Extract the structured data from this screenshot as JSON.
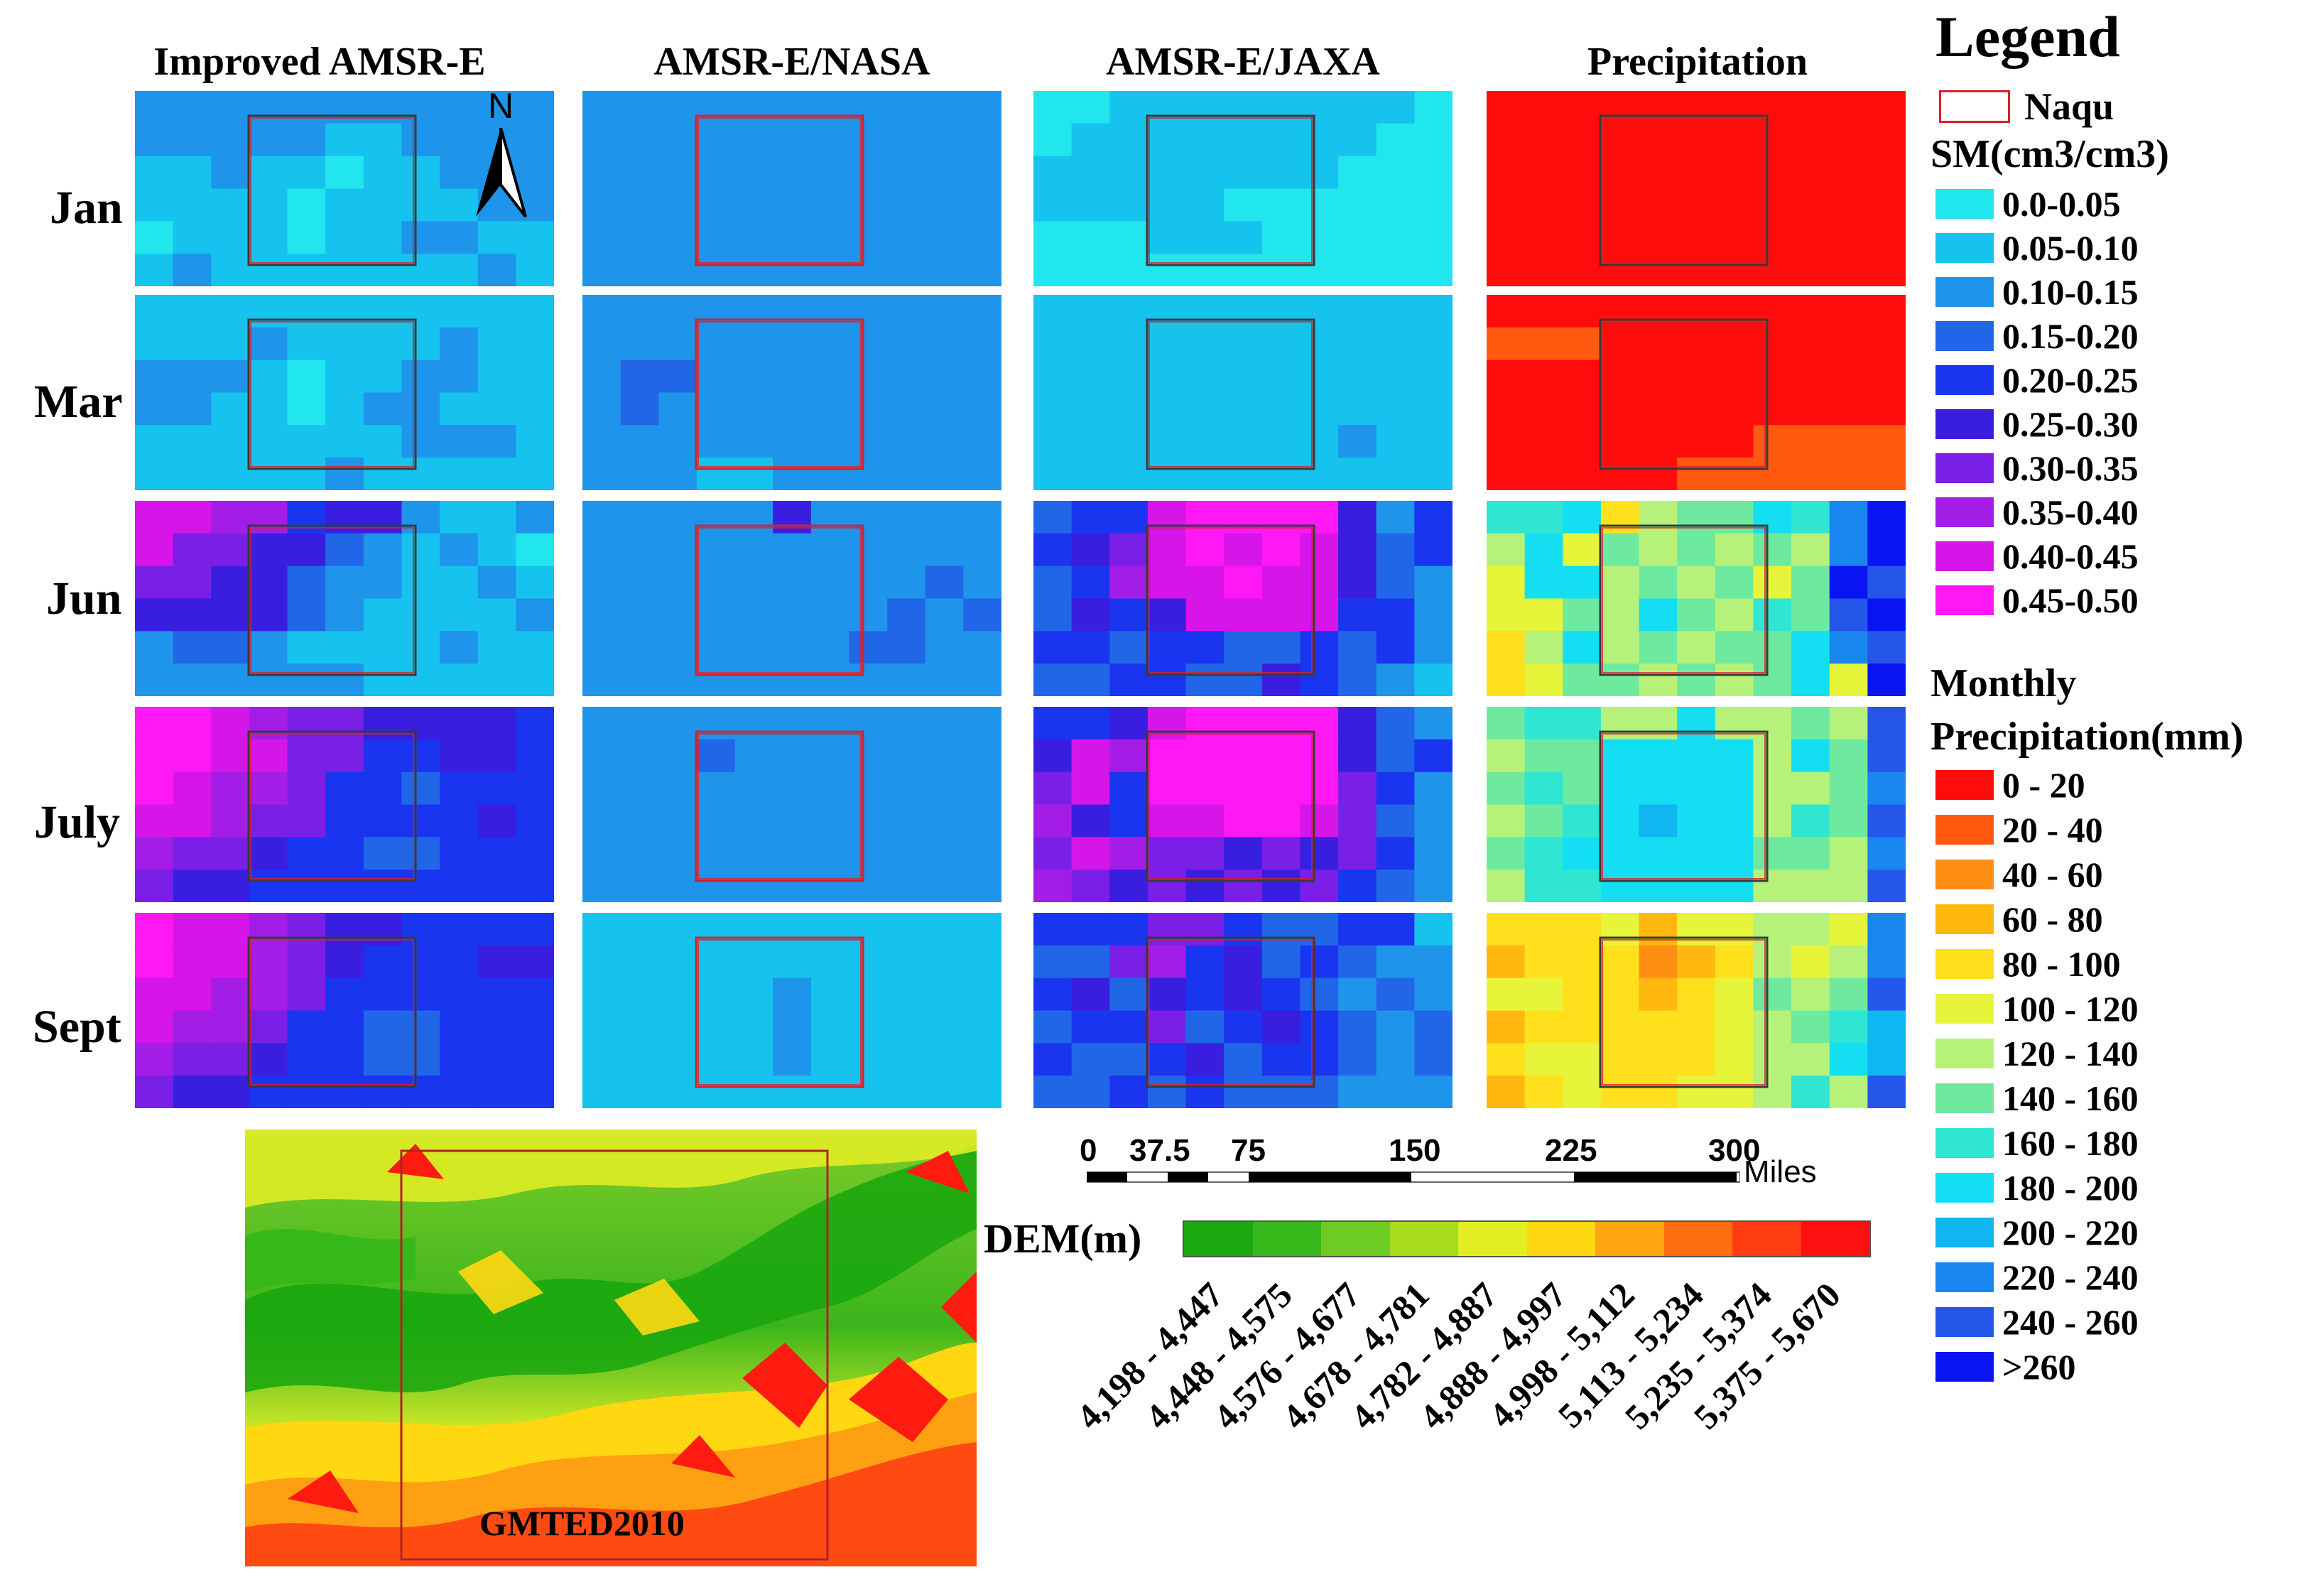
{
  "columns": [
    "Improved AMSR-E",
    "AMSR-E/NASA",
    "AMSR-E/JAXA",
    "Precipitation"
  ],
  "rows": [
    "Jan",
    "Mar",
    "Jun",
    "July",
    "Sept"
  ],
  "north_arrow_label": "N",
  "legend": {
    "title": "Legend",
    "naqu_label": "Naqu",
    "sm_title": "SM(cm3/cm3)",
    "sm_classes": [
      {
        "label": "0.0-0.05",
        "color": "#22e6ee"
      },
      {
        "label": "0.05-0.10",
        "color": "#16c2ee"
      },
      {
        "label": "0.10-0.15",
        "color": "#1e94ea"
      },
      {
        "label": "0.15-0.20",
        "color": "#2266e8"
      },
      {
        "label": "0.20-0.25",
        "color": "#1a35f0"
      },
      {
        "label": "0.25-0.30",
        "color": "#3a1ee0"
      },
      {
        "label": "0.30-0.35",
        "color": "#7a1fe6"
      },
      {
        "label": "0.35-0.40",
        "color": "#a41de6"
      },
      {
        "label": "0.40-0.45",
        "color": "#d616e8"
      },
      {
        "label": "0.45-0.50",
        "color": "#ff17f4"
      }
    ],
    "precip_title_1": "Monthly",
    "precip_title_2": "Precipitation(mm)",
    "precip_classes": [
      {
        "label": "0 - 20",
        "color": "#ff0d0d"
      },
      {
        "label": "20 - 40",
        "color": "#ff5a10"
      },
      {
        "label": "40 - 60",
        "color": "#ff8f12"
      },
      {
        "label": "60 - 80",
        "color": "#ffb810"
      },
      {
        "label": "80 - 100",
        "color": "#ffe01c"
      },
      {
        "label": "100 - 120",
        "color": "#e6f43a"
      },
      {
        "label": "120 - 140",
        "color": "#b6f27a"
      },
      {
        "label": "140 - 160",
        "color": "#6eeaa0"
      },
      {
        "label": "160 - 180",
        "color": "#2ee6d2"
      },
      {
        "label": "180 - 200",
        "color": "#14dff2"
      },
      {
        "label": "200 - 220",
        "color": "#10b6f0"
      },
      {
        "label": "220 - 240",
        "color": "#1886ee"
      },
      {
        "label": "240 - 260",
        "color": "#2556ea"
      },
      {
        "label": ">260",
        "color": "#0a14f0"
      }
    ]
  },
  "scale_bar": {
    "ticks": [
      "0",
      "37.5",
      "75",
      "150",
      "225",
      "300"
    ],
    "unit": "Miles"
  },
  "dem": {
    "title": "DEM(m)",
    "image_label": "GMTED2010",
    "classes": [
      {
        "label": "4,198 - 4,447",
        "color": "#19a80f"
      },
      {
        "label": "4,448 - 4,575",
        "color": "#37b81a"
      },
      {
        "label": "4,576 - 4,677",
        "color": "#6ecb24"
      },
      {
        "label": "4,678 - 4,781",
        "color": "#a6dc1c"
      },
      {
        "label": "4,782 - 4,887",
        "color": "#e2ee22"
      },
      {
        "label": "4,888 - 4,997",
        "color": "#ffd812"
      },
      {
        "label": "4,998 - 5,112",
        "color": "#ffa510"
      },
      {
        "label": "5,113 - 5,234",
        "color": "#ff6e10"
      },
      {
        "label": "5,235 - 5,374",
        "color": "#ff3c12"
      },
      {
        "label": "5,375 - 5,670",
        "color": "#ff1010"
      }
    ]
  },
  "panels": [
    {
      "row": 0,
      "col": 0,
      "grid": [
        "CCCCCCCCCCC",
        "CCCCCBBCCCC",
        "BBCBBABBCCC",
        "BBBBABBBBCC",
        "ABBBABBCCBB",
        "BCBBBBBBBCB"
      ]
    },
    {
      "row": 0,
      "col": 1,
      "grid": [
        "CCCCCCCCCCC",
        "CCCCCCCCCCC",
        "CCCCCCCCCCC",
        "CCCCCCCCCCC",
        "CCCCCCCCCCC",
        "CCCCCCCCCCC"
      ]
    },
    {
      "row": 0,
      "col": 2,
      "grid": [
        "AABBBBBBBBA",
        "ABBBBBBBBAA",
        "BBBBBBBBAAA",
        "BBBBBAAAAAA",
        "AAABBBAAAAA",
        "AAAAAAAAAAA"
      ]
    },
    {
      "row": 0,
      "col": 3,
      "precip": true,
      "grid": [
        "00000000000",
        "00000000000",
        "00000000000",
        "00000000000",
        "00000000000",
        "00000000000"
      ]
    },
    {
      "row": 1,
      "col": 0,
      "grid": [
        "BBBBBBBBBBB",
        "BBBCBBBBCBB",
        "CCCBABBCCBB",
        "CCBBABCCBBB",
        "BBBBBBBCCCB",
        "BBBBBCBBBBB"
      ]
    },
    {
      "row": 1,
      "col": 1,
      "grid": [
        "CCCCCCCCCCC",
        "CCCCCCCCCCC",
        "CDDCCCCCCCC",
        "CDCCCCCCCCC",
        "CCCCCCCCCCC",
        "CCCBBCCCCCC"
      ]
    },
    {
      "row": 1,
      "col": 2,
      "grid": [
        "BBBBBBBBBBB",
        "BBBBBBBBBBB",
        "BBBBBBBBBBB",
        "BBBBBBBBBBB",
        "BBBBBBBBCBB",
        "BBBBBBBBBBB"
      ]
    },
    {
      "row": 1,
      "col": 3,
      "precip": true,
      "grid": [
        "00000000000",
        "11100000000",
        "00000000000",
        "00000000000",
        "00000001111",
        "00000111111"
      ]
    },
    {
      "row": 2,
      "col": 0,
      "grid": [
        "IIHHEFFCBBC",
        "IGGFFDCBCBA",
        "GGFFDCCBBCB",
        "FFFFDCBBBBC",
        "CDDCBBBBCBB",
        "CCCCCCBBBBB"
      ]
    },
    {
      "row": 2,
      "col": 1,
      "grid": [
        "CCCCCFCCCCC",
        "CCCCCCCCCCC",
        "CCCCCCCCCDC",
        "CCCCCCCCDCD",
        "CCCCCCCDDCC",
        "CCCCCCCCCCC"
      ]
    },
    {
      "row": 2,
      "col": 2,
      "grid": [
        "DEEIJJJJFCE",
        "EFGIJIJIFDE",
        "DEHIIJIIFDC",
        "DFEFIIIIEEC",
        "EEDEEDDEDEC",
        "DDEEDDFEDCB"
      ]
    },
    {
      "row": 2,
      "col": 3,
      "precip": true,
      "grid": [
        "889467798BD",
        "695767676BD",
        "599676757DC",
        "557697687CD",
        "469676779BC",
        "4577676795D"
      ]
    },
    {
      "row": 3,
      "col": 0,
      "grid": [
        "JJIHGGFFFFE",
        "JJIIGGEEFFE",
        "JIHHGEEDEEE",
        "IIHGGEEEEFE",
        "HGGFEEDDEEE",
        "GFFEEEEEEEE"
      ]
    },
    {
      "row": 3,
      "col": 1,
      "grid": [
        "CCCCCCCCCCC",
        "CCCDCCCCCCC",
        "CCCCCCCCCCC",
        "CCCCCCCCCCC",
        "CCCCCCCCCCC",
        "CCCCCCCCCCC"
      ]
    },
    {
      "row": 3,
      "col": 2,
      "grid": [
        "EEFIJJJJFDC",
        "FIHJJJJJFDE",
        "GIEJJJJJGEC",
        "HFEIIJJIGDC",
        "GIHGGFGFGEC",
        "HGFGFGFGEDC"
      ]
    },
    {
      "row": 3,
      "col": 3,
      "precip": true,
      "grid": [
        "7886696676C",
        "6779999697C",
        "7879999667B",
        "6789A99687C",
        "7899999776B",
        "6889999666C"
      ]
    },
    {
      "row": 4,
      "col": 0,
      "grid": [
        "JIIHGFFEEEE",
        "JIIHGFEEEFF",
        "IIHHGEEEEEE",
        "IHHGEEDDEEE",
        "HGGFEEDDEEE",
        "GFFEEEEEEEE"
      ]
    },
    {
      "row": 4,
      "col": 1,
      "grid": [
        "BBBBBBBBBBB",
        "BBBBBBBBBBB",
        "BBBBBCBBBBB",
        "BBBBBCBBBBB",
        "BBBBBCBBBBB",
        "BBBBBBBBBBB"
      ]
    },
    {
      "row": 4,
      "col": 2,
      "grid": [
        "EEEGGEDDEEB",
        "DDGHEFDEDCC",
        "EFDFEFEDCDC",
        "DEEGDEFEDCD",
        "EDDEFDEEDCD",
        "DDEDEDDDCCC"
      ]
    },
    {
      "row": 4,
      "col": 3,
      "precip": true,
      "grid": [
        "4445355665B",
        "3444234656B",
        "5544345767C",
        "3444445678A",
        "4554445669A",
        "3454455686C"
      ]
    }
  ]
}
